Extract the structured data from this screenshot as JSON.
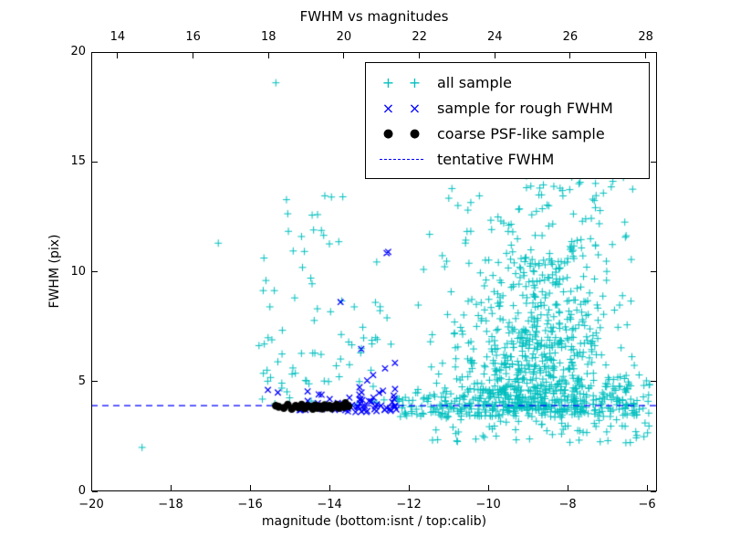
{
  "title": "FWHM vs magnitudes",
  "axes": {
    "xlabel": "magnitude (bottom:isnt / top:calib)",
    "ylabel": "FWHM (pix)",
    "xlim": [
      -20,
      -5.75
    ],
    "top_xlim": [
      13.3,
      28.3
    ],
    "ylim": [
      0,
      20
    ],
    "x_ticks": [
      {
        "value": -20,
        "label": "−20"
      },
      {
        "value": -18,
        "label": "−18"
      },
      {
        "value": -16,
        "label": "−16"
      },
      {
        "value": -14,
        "label": "−14"
      },
      {
        "value": -12,
        "label": "−12"
      },
      {
        "value": -10,
        "label": "−10"
      },
      {
        "value": -8,
        "label": "−8"
      },
      {
        "value": -6,
        "label": "−6"
      }
    ],
    "top_ticks": [
      {
        "value": 14,
        "label": "14"
      },
      {
        "value": 16,
        "label": "16"
      },
      {
        "value": 18,
        "label": "18"
      },
      {
        "value": 20,
        "label": "20"
      },
      {
        "value": 22,
        "label": "22"
      },
      {
        "value": 24,
        "label": "24"
      },
      {
        "value": 26,
        "label": "26"
      },
      {
        "value": 28,
        "label": "28"
      }
    ],
    "y_ticks": [
      {
        "value": 0,
        "label": "0"
      },
      {
        "value": 5,
        "label": "5"
      },
      {
        "value": 10,
        "label": "10"
      },
      {
        "value": 15,
        "label": "15"
      },
      {
        "value": 20,
        "label": "20"
      }
    ]
  },
  "legend": {
    "items": [
      {
        "label": "all sample",
        "marker": "plus",
        "color": "#00bfbf"
      },
      {
        "label": "sample for rough FWHM",
        "marker": "x",
        "color": "#0000ff"
      },
      {
        "label": "coarse PSF-like sample",
        "marker": "dot",
        "color": "#000000"
      },
      {
        "label": "tentative FWHM",
        "marker": "dashed-line",
        "color": "#0000ff"
      }
    ]
  },
  "chart_data": {
    "type": "scatter",
    "title": "FWHM vs magnitudes",
    "xlabel": "magnitude (bottom:isnt / top:calib)",
    "ylabel": "FWHM (pix)",
    "xlim": [
      -20,
      -5.75
    ],
    "ylim": [
      0,
      20
    ],
    "top_axis_lim": [
      13.3,
      28.3
    ],
    "grid": false,
    "legend_position": "upper right",
    "tentative_fwhm": 3.9,
    "seed": 1234,
    "series": [
      {
        "name": "all sample",
        "marker": "plus",
        "color": "#00bfbf",
        "points": [
          [
            -18.72,
            2.0
          ],
          [
            -15.35,
            18.6
          ],
          [
            -16.8,
            11.3
          ],
          [
            -13.95,
            13.4
          ],
          [
            -10.7,
            16.3
          ],
          [
            -9.8,
            16.0
          ],
          [
            -12.45,
            6.7
          ],
          [
            -12.55,
            7.9
          ],
          [
            -5.95,
            4.85
          ],
          [
            -6.2,
            5.3
          ],
          [
            -15.6,
            9.6
          ],
          [
            -15.5,
            8.4
          ],
          [
            -15.45,
            6.9
          ],
          [
            -15.3,
            5.9
          ],
          [
            -15.2,
            4.7
          ],
          [
            -14.4,
            11.9
          ],
          [
            -14.3,
            12.6
          ]
        ],
        "clusters": [
          {
            "count": 500,
            "x": {
              "dist": "gauss",
              "mean": -8.9,
              "sd": 1.1,
              "min": -11.8,
              "max": -6.0
            },
            "y": {
              "dist": "absnorm",
              "base": 3.6,
              "scale": 2.4,
              "max": 12.0
            }
          },
          {
            "count": 300,
            "x": {
              "dist": "uniform",
              "min": -12.3,
              "max": -5.85
            },
            "y": {
              "dist": "absnorm",
              "base": 3.4,
              "scale": 0.8,
              "max": 6.5
            }
          },
          {
            "count": 200,
            "x": {
              "dist": "gauss",
              "mean": -8.6,
              "sd": 1.0,
              "min": -11.6,
              "max": -6.2
            },
            "y": {
              "dist": "gauss",
              "mean": 8.5,
              "sd": 2.0,
              "min": 4.0,
              "max": 14.0
            }
          },
          {
            "count": 130,
            "x": {
              "dist": "gauss",
              "mean": -8.8,
              "sd": 1.2,
              "min": -11.8,
              "max": -6.3
            },
            "y": {
              "dist": "uniform",
              "min": 10.0,
              "max": 16.2
            }
          },
          {
            "count": 70,
            "x": {
              "dist": "uniform",
              "min": -11.5,
              "max": -5.9
            },
            "y": {
              "dist": "uniform",
              "min": 2.2,
              "max": 3.5
            }
          },
          {
            "count": 60,
            "x": {
              "dist": "uniform",
              "min": -15.85,
              "max": -12.6
            },
            "y": {
              "dist": "absnorm",
              "base": 3.9,
              "scale": 2.6,
              "max": 13.0
            }
          },
          {
            "count": 20,
            "x": {
              "dist": "gauss",
              "mean": -14.3,
              "sd": 0.9,
              "min": -15.9,
              "max": -12.7
            },
            "y": {
              "dist": "uniform",
              "min": 6.5,
              "max": 13.5
            }
          }
        ]
      },
      {
        "name": "sample for rough FWHM",
        "marker": "x",
        "color": "#0000ff",
        "points": [
          [
            -12.52,
            10.9
          ],
          [
            -12.56,
            10.85
          ],
          [
            -13.72,
            8.62
          ],
          [
            -13.2,
            6.48
          ],
          [
            -15.55,
            4.62
          ],
          [
            -15.3,
            4.5
          ],
          [
            -12.35,
            5.85
          ],
          [
            -12.6,
            5.6
          ],
          [
            -12.9,
            5.3
          ],
          [
            -13.05,
            5.05
          ],
          [
            -14.55,
            4.55
          ],
          [
            -14.2,
            4.4
          ]
        ],
        "clusters": [
          {
            "count": 45,
            "x": {
              "dist": "uniform",
              "min": -13.6,
              "max": -12.25
            },
            "y": {
              "dist": "absnorm",
              "base": 3.6,
              "scale": 0.55,
              "max": 5.9
            }
          },
          {
            "count": 25,
            "x": {
              "dist": "uniform",
              "min": -14.9,
              "max": -13.5
            },
            "y": {
              "dist": "absnorm",
              "base": 3.7,
              "scale": 0.3,
              "max": 4.8
            }
          }
        ]
      },
      {
        "name": "coarse PSF-like sample",
        "marker": "dot",
        "color": "#000000",
        "points": [
          [
            -15.35,
            3.9
          ],
          [
            -15.28,
            3.85
          ],
          [
            -15.15,
            3.8
          ],
          [
            -15.05,
            3.95
          ],
          [
            -14.95,
            3.75
          ],
          [
            -14.85,
            3.9
          ],
          [
            -14.78,
            3.82
          ],
          [
            -14.7,
            3.95
          ],
          [
            -14.62,
            3.78
          ],
          [
            -14.55,
            3.9
          ],
          [
            -14.48,
            3.85
          ],
          [
            -14.42,
            3.75
          ],
          [
            -14.36,
            3.92
          ],
          [
            -14.3,
            3.8
          ],
          [
            -14.24,
            3.88
          ],
          [
            -14.18,
            3.76
          ],
          [
            -14.12,
            3.93
          ],
          [
            -14.06,
            3.82
          ],
          [
            -14.0,
            3.9
          ],
          [
            -13.94,
            3.78
          ],
          [
            -13.88,
            3.87
          ],
          [
            -13.82,
            3.95
          ],
          [
            -13.76,
            3.8
          ],
          [
            -13.7,
            3.9
          ],
          [
            -13.64,
            3.84
          ],
          [
            -13.58,
            3.96
          ],
          [
            -13.52,
            3.88
          ],
          [
            -13.6,
            4.02
          ]
        ]
      },
      {
        "name": "tentative FWHM",
        "type": "hline",
        "style": "dashed",
        "color": "#0000ff",
        "y": 3.9
      }
    ]
  }
}
